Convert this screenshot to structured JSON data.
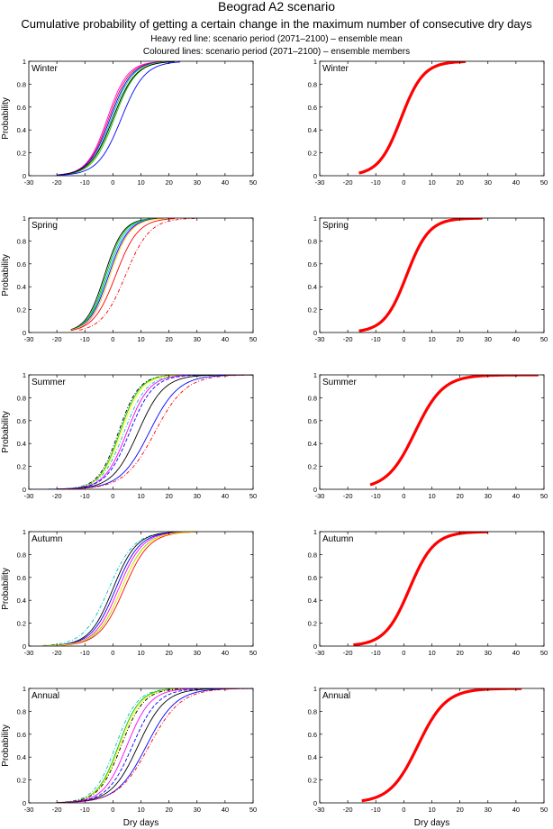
{
  "header": {
    "title": "Beograd A2 scenario",
    "subtitle": "Cumulative probability of getting a certain change in the maximum number of consecutive dry days",
    "legend_line1": "Heavy red line: scenario period (2071–2100) – ensemble mean",
    "legend_line2": "Coloured lines: scenario period (2071–2100) – ensemble members"
  },
  "axes": {
    "xlabel": "Dry days",
    "ylabel": "Probability",
    "xlim": [
      -30,
      50
    ],
    "ylim": [
      0,
      1
    ],
    "xticks": [
      -30,
      -20,
      -10,
      0,
      10,
      20,
      30,
      40,
      50
    ],
    "yticks": [
      0,
      0.2,
      0.4,
      0.6,
      0.8,
      1
    ],
    "ytick_labels": [
      "0",
      "0.2",
      "0.4",
      "0.6",
      "0.8",
      "1"
    ]
  },
  "chart_data": {
    "type": "line",
    "description_function": "logistic CDF: p(x) = 1 / (1 + exp(-(x - median)/scale)), curves truncated at [xmin, xmax]",
    "panels": [
      {
        "season": "Winter",
        "members": [
          {
            "color": "#ff00ff",
            "median": -2,
            "scale": 3.6,
            "dash": "",
            "xmin": -20,
            "xmax": 22
          },
          {
            "color": "#ff0000",
            "median": -1.5,
            "scale": 3.7,
            "dash": "",
            "xmin": -20,
            "xmax": 22
          },
          {
            "color": "#0000ff",
            "median": -1,
            "scale": 3.8,
            "dash": "",
            "xmin": -20,
            "xmax": 22
          },
          {
            "color": "#00bfbf",
            "median": -0.5,
            "scale": 3.8,
            "dash": "",
            "xmin": -20,
            "xmax": 22
          },
          {
            "color": "#ffff00",
            "median": 0,
            "scale": 3.9,
            "dash": "",
            "xmin": -20,
            "xmax": 22
          },
          {
            "color": "#00c000",
            "median": 0.5,
            "scale": 3.9,
            "dash": "",
            "xmin": -20,
            "xmax": 22
          },
          {
            "color": "#000000",
            "median": 0,
            "scale": 4.0,
            "dash": "",
            "xmin": -20,
            "xmax": 22
          },
          {
            "color": "#0000ff",
            "median": 3,
            "scale": 4.2,
            "dash": "",
            "xmin": -20,
            "xmax": 24
          }
        ],
        "mean": {
          "median": -1,
          "scale": 4.0,
          "xmin": -16,
          "xmax": 22
        }
      },
      {
        "season": "Spring",
        "members": [
          {
            "color": "#000000",
            "median": -3,
            "scale": 3.3,
            "dash": "",
            "xmin": -15,
            "xmax": 18
          },
          {
            "color": "#00c000",
            "median": -2.5,
            "scale": 3.3,
            "dash": "",
            "xmin": -15,
            "xmax": 18
          },
          {
            "color": "#00bfbf",
            "median": -2,
            "scale": 3.4,
            "dash": "",
            "xmin": -15,
            "xmax": 18
          },
          {
            "color": "#0000ff",
            "median": -1.5,
            "scale": 3.5,
            "dash": "",
            "xmin": -15,
            "xmax": 18
          },
          {
            "color": "#ff00ff",
            "median": -1,
            "scale": 3.5,
            "dash": "",
            "xmin": -15,
            "xmax": 18
          },
          {
            "color": "#ffff00",
            "median": -1,
            "scale": 3.6,
            "dash": "",
            "xmin": -15,
            "xmax": 18
          },
          {
            "color": "#ff0000",
            "median": 1,
            "scale": 4.0,
            "dash": "",
            "xmin": -15,
            "xmax": 22
          },
          {
            "color": "#ff0000",
            "median": 4.5,
            "scale": 4.3,
            "dash": "4,2,1,2",
            "xmin": -12,
            "xmax": 30
          }
        ],
        "mean": {
          "median": 1,
          "scale": 4.0,
          "xmin": -16,
          "xmax": 28
        }
      },
      {
        "season": "Summer",
        "members": [
          {
            "color": "#000000",
            "median": 2,
            "scale": 3.6,
            "dash": "4,2,1,2",
            "xmin": -20,
            "xmax": 30
          },
          {
            "color": "#00c000",
            "median": 2.5,
            "scale": 3.6,
            "dash": "",
            "xmin": -20,
            "xmax": 30
          },
          {
            "color": "#ffff00",
            "median": 3,
            "scale": 3.7,
            "dash": "",
            "xmin": -20,
            "xmax": 30
          },
          {
            "color": "#00bfbf",
            "median": 4,
            "scale": 4.0,
            "dash": "4,2,1,2",
            "xmin": -20,
            "xmax": 32
          },
          {
            "color": "#ff00ff",
            "median": 5,
            "scale": 4.0,
            "dash": "",
            "xmin": -20,
            "xmax": 32
          },
          {
            "color": "#0000ff",
            "median": 6,
            "scale": 4.2,
            "dash": "4,2",
            "xmin": -20,
            "xmax": 34
          },
          {
            "color": "#000000",
            "median": 9,
            "scale": 4.6,
            "dash": "",
            "xmin": -20,
            "xmax": 40
          },
          {
            "color": "#0000ff",
            "median": 13,
            "scale": 5.2,
            "dash": "",
            "xmin": -30,
            "xmax": 50
          },
          {
            "color": "#ff0000",
            "median": 15,
            "scale": 5.5,
            "dash": "4,2,1,2",
            "xmin": -20,
            "xmax": 50
          }
        ],
        "mean": {
          "median": 4,
          "scale": 5.0,
          "xmin": -12,
          "xmax": 48
        }
      },
      {
        "season": "Autumn",
        "members": [
          {
            "color": "#00bfbf",
            "median": -1.5,
            "scale": 4.5,
            "dash": "4,2,1,2",
            "xmin": -25,
            "xmax": 30
          },
          {
            "color": "#000000",
            "median": 0,
            "scale": 4.2,
            "dash": "",
            "xmin": -25,
            "xmax": 30
          },
          {
            "color": "#0000ff",
            "median": 1,
            "scale": 4.3,
            "dash": "",
            "xmin": -25,
            "xmax": 30
          },
          {
            "color": "#ff00ff",
            "median": 2,
            "scale": 4.3,
            "dash": "",
            "xmin": -25,
            "xmax": 30
          },
          {
            "color": "#00c000",
            "median": 3,
            "scale": 4.4,
            "dash": "",
            "xmin": -25,
            "xmax": 30
          },
          {
            "color": "#ff0000",
            "median": 4,
            "scale": 4.5,
            "dash": "",
            "xmin": -25,
            "xmax": 30
          },
          {
            "color": "#ffff00",
            "median": 3,
            "scale": 4.5,
            "dash": "",
            "xmin": -25,
            "xmax": 30
          }
        ],
        "mean": {
          "median": 2,
          "scale": 4.4,
          "xmin": -18,
          "xmax": 30
        }
      },
      {
        "season": "Annual",
        "members": [
          {
            "color": "#00bfbf",
            "median": 1,
            "scale": 3.8,
            "dash": "4,2,1,2",
            "xmin": -20,
            "xmax": 40
          },
          {
            "color": "#00c000",
            "median": 2,
            "scale": 3.8,
            "dash": "",
            "xmin": -20,
            "xmax": 40
          },
          {
            "color": "#ffff00",
            "median": 2.5,
            "scale": 3.9,
            "dash": "",
            "xmin": -20,
            "xmax": 40
          },
          {
            "color": "#000000",
            "median": 3,
            "scale": 4.0,
            "dash": "4,2,1,2",
            "xmin": -20,
            "xmax": 40
          },
          {
            "color": "#ff00ff",
            "median": 5,
            "scale": 4.2,
            "dash": "",
            "xmin": -20,
            "xmax": 42
          },
          {
            "color": "#0000ff",
            "median": 7,
            "scale": 4.5,
            "dash": "4,2",
            "xmin": -20,
            "xmax": 45
          },
          {
            "color": "#000000",
            "median": 9,
            "scale": 4.8,
            "dash": "",
            "xmin": -20,
            "xmax": 48
          },
          {
            "color": "#0000ff",
            "median": 12,
            "scale": 5.3,
            "dash": "",
            "xmin": -20,
            "xmax": 50
          },
          {
            "color": "#ff0000",
            "median": 13,
            "scale": 5.6,
            "dash": "4,2,1,2",
            "xmin": -20,
            "xmax": 50
          }
        ],
        "mean": {
          "median": 5,
          "scale": 5.0,
          "xmin": -15,
          "xmax": 42
        }
      }
    ]
  },
  "colors": {
    "mean_line": "#ff0000",
    "axis": "#000000"
  }
}
